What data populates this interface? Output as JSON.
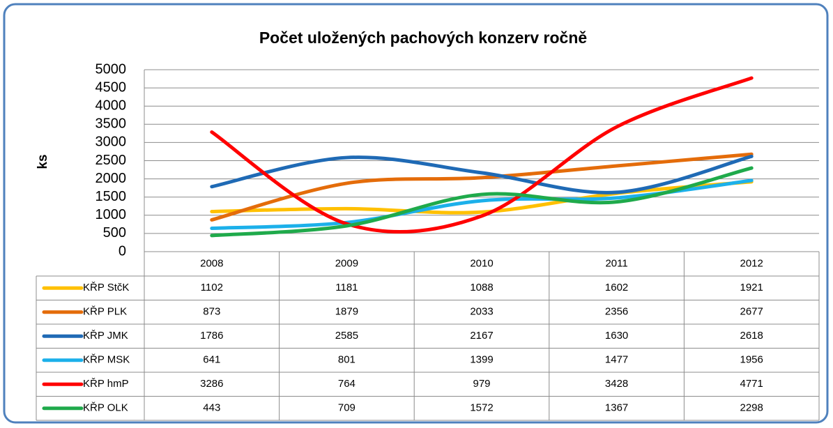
{
  "chart_data": {
    "type": "line",
    "title": "Počet uložených pachových konzerv ročně",
    "y_label": "ks",
    "categories": [
      "2008",
      "2009",
      "2010",
      "2011",
      "2012"
    ],
    "series": [
      {
        "name": "KŘP StčK",
        "color": "#ffc000",
        "values": [
          1102,
          1181,
          1088,
          1602,
          1921
        ]
      },
      {
        "name": "KŘP PLK",
        "color": "#e46c0a",
        "values": [
          873,
          1879,
          2033,
          2356,
          2677
        ]
      },
      {
        "name": "KŘP JMK",
        "color": "#1f6ab5",
        "values": [
          1786,
          2585,
          2167,
          1630,
          2618
        ]
      },
      {
        "name": "KŘP MSK",
        "color": "#1cb0ea",
        "values": [
          641,
          801,
          1399,
          1477,
          1956
        ]
      },
      {
        "name": "KŘP hmP",
        "color": "#ff0000",
        "values": [
          3286,
          764,
          979,
          3428,
          4771
        ]
      },
      {
        "name": "KŘP OLK",
        "color": "#1faa4b",
        "values": [
          443,
          709,
          1572,
          1367,
          2298
        ]
      }
    ],
    "ylim": [
      0,
      5000
    ],
    "yticks": [
      0,
      500,
      1000,
      1500,
      2000,
      2500,
      3000,
      3500,
      4000,
      4500,
      5000
    ],
    "grid": true,
    "smooth": true,
    "data_table": true
  }
}
